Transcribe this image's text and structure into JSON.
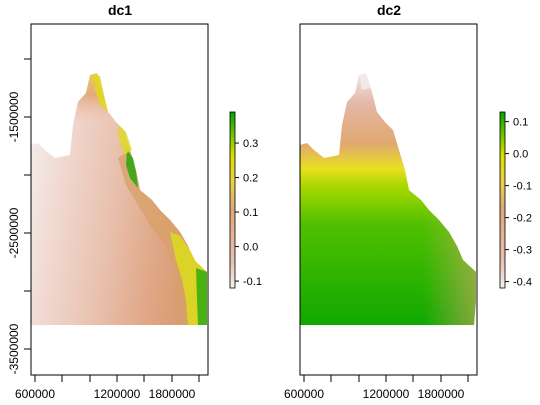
{
  "chart_data": [
    {
      "type": "heatmap",
      "title": "dc1",
      "xlabel": "",
      "ylabel": "",
      "x_ticks": [
        "600000",
        "1200000",
        "1800000"
      ],
      "y_ticks": [
        "-1500000",
        "-2500000",
        "-3500000"
      ],
      "xlim": [
        570000,
        2000000
      ],
      "ylim": [
        -3900000,
        -720000
      ],
      "legend": {
        "ticks": [
          "0.3",
          "0.2",
          "0.1",
          "0.0",
          "-0.1"
        ],
        "tick_values": [
          0.3,
          0.2,
          0.1,
          0.0,
          -0.1
        ],
        "range": [
          -0.12,
          0.39
        ],
        "placement": "right",
        "colors": [
          "#f2f2f2",
          "#e8b8a8",
          "#e0a878",
          "#f0e020",
          "#c8d800",
          "#00a600"
        ]
      }
    },
    {
      "type": "heatmap",
      "title": "dc2",
      "xlabel": "",
      "ylabel": "",
      "x_ticks": [
        "600000",
        "1200000",
        "1800000"
      ],
      "xlim": [
        570000,
        2000000
      ],
      "ylim": [
        -3900000,
        -720000
      ],
      "legend": {
        "ticks": [
          "0.1",
          "0.0",
          "-0.1",
          "-0.2",
          "-0.3",
          "-0.4"
        ],
        "tick_values": [
          0.1,
          0.0,
          -0.1,
          -0.2,
          -0.3,
          -0.4
        ],
        "range": [
          -0.42,
          0.13
        ],
        "placement": "right",
        "colors": [
          "#f2f2f2",
          "#e8b8a8",
          "#e0a878",
          "#f0e020",
          "#c8d800",
          "#00a600"
        ]
      }
    }
  ]
}
